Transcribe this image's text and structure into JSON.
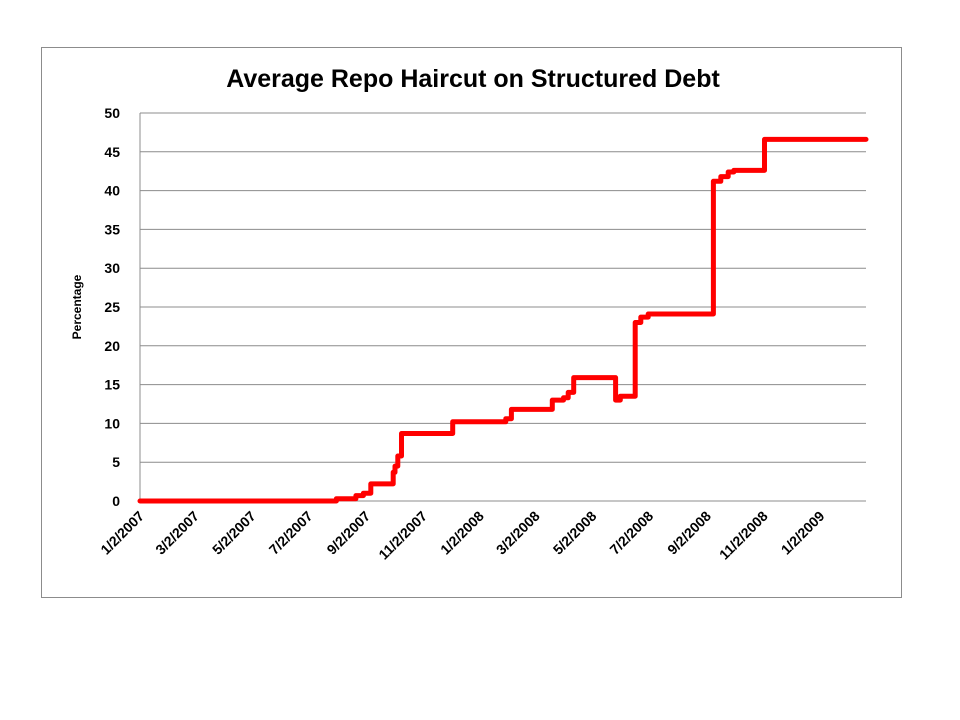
{
  "chart_data": {
    "type": "line",
    "title": "Average  Repo Haircut on Structured Debt",
    "xlabel": "",
    "ylabel": "Percentage",
    "ylim": [
      0,
      50
    ],
    "yticks": [
      0,
      5,
      10,
      15,
      20,
      25,
      30,
      35,
      40,
      45,
      50
    ],
    "xlim": [
      "2007-01-02",
      "2009-02-20"
    ],
    "xticks": [
      "1/2/2007",
      "3/2/2007",
      "5/2/2007",
      "7/2/2007",
      "9/2/2007",
      "11/2/2007",
      "1/2/2008",
      "3/2/2008",
      "5/2/2008",
      "7/2/2008",
      "9/2/2008",
      "11/2/2008",
      "1/2/2009"
    ],
    "grid": true,
    "legend": "none",
    "colors": {
      "series": "#ff0000",
      "grid": "#8c8c8c",
      "frame": "#8c8c8c"
    },
    "series": [
      {
        "step": "post",
        "x": [
          "2007-01-02",
          "2007-08-01",
          "2007-08-22",
          "2007-08-30",
          "2007-09-07",
          "2007-09-25",
          "2007-10-01",
          "2007-10-03",
          "2007-10-06",
          "2007-10-10",
          "2007-12-01",
          "2007-12-04",
          "2008-01-23",
          "2008-01-30",
          "2008-02-05",
          "2008-03-14",
          "2008-03-20",
          "2008-04-01",
          "2008-04-06",
          "2008-04-12",
          "2008-05-25",
          "2008-05-27",
          "2008-06-01",
          "2008-06-15",
          "2008-06-17",
          "2008-06-23",
          "2008-07-01",
          "2008-09-07",
          "2008-09-09",
          "2008-09-17",
          "2008-09-25",
          "2008-10-01",
          "2008-11-01",
          "2008-11-03",
          "2009-02-20"
        ],
        "y": [
          0,
          0.3,
          0.7,
          1.0,
          2.2,
          2.2,
          3.7,
          4.5,
          5.8,
          8.7,
          8.7,
          10.2,
          10.2,
          10.6,
          11.8,
          11.8,
          13.0,
          13.3,
          14.0,
          15.9,
          15.9,
          13.0,
          13.5,
          13.5,
          23.0,
          23.7,
          24.1,
          24.1,
          41.2,
          41.8,
          42.4,
          42.6,
          42.6,
          46.6,
          46.6
        ]
      }
    ]
  }
}
